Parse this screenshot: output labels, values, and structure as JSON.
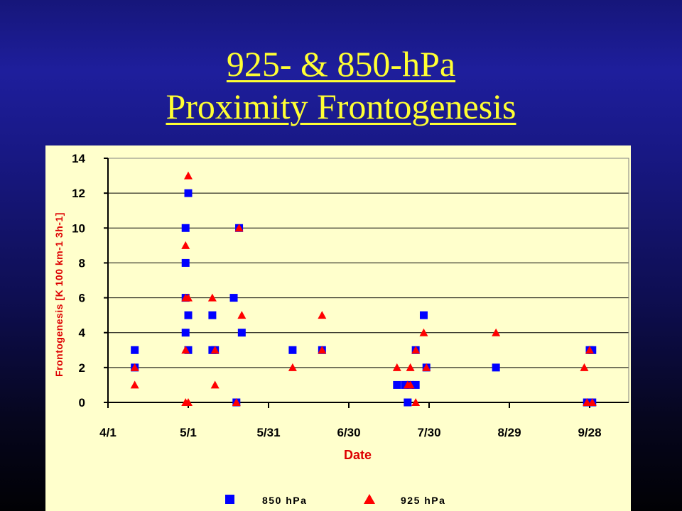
{
  "slide": {
    "title_line1": "925- & 850-hPa",
    "title_line2": "Proximity Frontogenesis"
  },
  "colors": {
    "title": "#ffff33",
    "plot_background": "#ffffcc",
    "series_850": "#0000ff",
    "series_925": "#ff0000",
    "axis_title": "#dd0000"
  },
  "chart_data": {
    "type": "scatter",
    "xlabel": "Date",
    "ylabel": "Frontogenesis [K 100 km-1 3h-1]",
    "x_unit": "day_of_year",
    "xlim": [
      91,
      288
    ],
    "ylim": [
      0,
      14
    ],
    "x_ticks": [
      {
        "value": 91,
        "label": "4/1"
      },
      {
        "value": 121,
        "label": "5/1"
      },
      {
        "value": 151,
        "label": "5/31"
      },
      {
        "value": 181,
        "label": "6/30"
      },
      {
        "value": 211,
        "label": "7/30"
      },
      {
        "value": 241,
        "label": "8/29"
      },
      {
        "value": 271,
        "label": "9/28"
      }
    ],
    "y_ticks": [
      0,
      2,
      4,
      6,
      8,
      10,
      12,
      14
    ],
    "grid": "horizontal",
    "legend_position": "bottom",
    "series": [
      {
        "name": "850 hPa",
        "marker": "square",
        "color": "#0000ff",
        "points": [
          [
            101,
            3
          ],
          [
            101,
            2
          ],
          [
            120,
            10
          ],
          [
            120,
            8
          ],
          [
            120,
            6
          ],
          [
            120,
            4
          ],
          [
            121,
            12
          ],
          [
            121,
            5
          ],
          [
            121,
            3
          ],
          [
            130,
            3
          ],
          [
            130,
            5
          ],
          [
            131,
            3
          ],
          [
            138,
            6
          ],
          [
            139,
            0
          ],
          [
            140,
            10
          ],
          [
            141,
            4
          ],
          [
            160,
            3
          ],
          [
            171,
            3
          ],
          [
            199,
            1
          ],
          [
            202,
            1
          ],
          [
            203,
            0
          ],
          [
            204,
            1
          ],
          [
            206,
            3
          ],
          [
            206,
            1
          ],
          [
            209,
            5
          ],
          [
            210,
            2
          ],
          [
            236,
            2
          ],
          [
            270,
            0
          ],
          [
            271,
            3
          ],
          [
            272,
            3
          ],
          [
            272,
            0
          ]
        ]
      },
      {
        "name": "925 hPa",
        "marker": "triangle",
        "color": "#ff0000",
        "points": [
          [
            101,
            1
          ],
          [
            101,
            2
          ],
          [
            121,
            13
          ],
          [
            120,
            9
          ],
          [
            121,
            6
          ],
          [
            120,
            6
          ],
          [
            120,
            3
          ],
          [
            120,
            0
          ],
          [
            121,
            0
          ],
          [
            130,
            6
          ],
          [
            131,
            3
          ],
          [
            131,
            1
          ],
          [
            139,
            0
          ],
          [
            140,
            10
          ],
          [
            141,
            5
          ],
          [
            160,
            2
          ],
          [
            171,
            3
          ],
          [
            171,
            5
          ],
          [
            199,
            2
          ],
          [
            203,
            1
          ],
          [
            204,
            2
          ],
          [
            204,
            1
          ],
          [
            206,
            3
          ],
          [
            206,
            0
          ],
          [
            209,
            4
          ],
          [
            210,
            2
          ],
          [
            236,
            4
          ],
          [
            269,
            2
          ],
          [
            270,
            0
          ],
          [
            271,
            3
          ],
          [
            272,
            0
          ]
        ]
      }
    ]
  }
}
